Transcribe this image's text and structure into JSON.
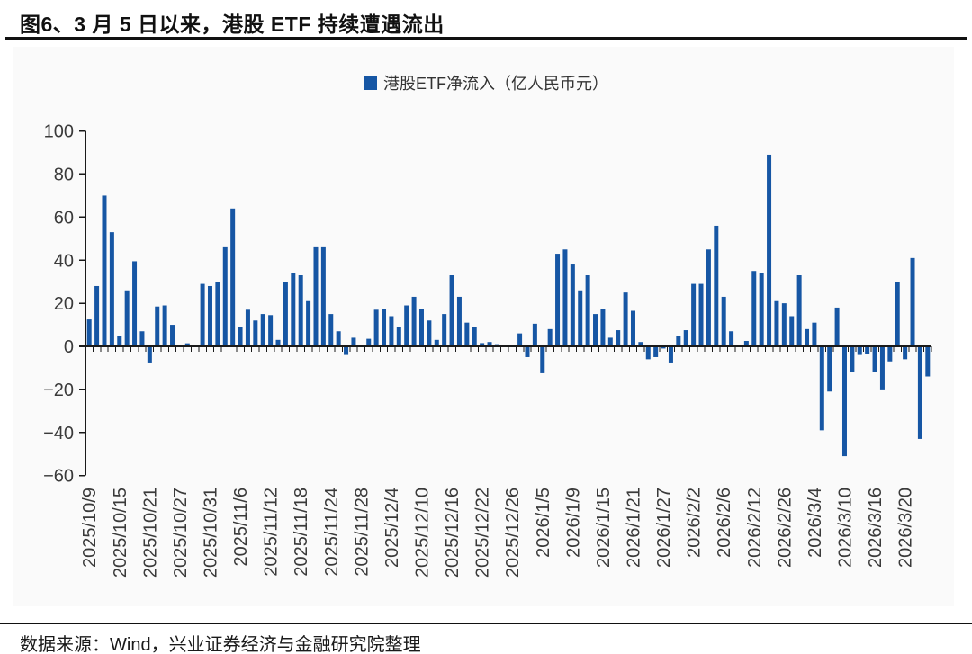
{
  "figure": {
    "title": "图6、3 月 5 日以来，港股 ETF 持续遭遇流出",
    "source": "数据来源：Wind，兴业证券经济与金融研究院整理"
  },
  "chart_data": {
    "type": "bar",
    "title": "",
    "legend": "港股ETF净流入（亿人民币元）",
    "legend_position": "top-center",
    "bar_color": "#1656A4",
    "axis_color": "#1a1a1a",
    "tick_label_color": "#3a3a3a",
    "grid": false,
    "ylim": [
      -60,
      100
    ],
    "ytick_labels": [
      "100",
      "80",
      "60",
      "40",
      "20",
      "0",
      "−20",
      "−40",
      "−60"
    ],
    "ytick_values": [
      100,
      80,
      60,
      40,
      20,
      0,
      -20,
      -40,
      -60
    ],
    "label_every_n_bars": 4,
    "x_tick_labels": [
      "2025/10/9",
      "2025/10/15",
      "2025/10/21",
      "2025/10/27",
      "2025/10/31",
      "2025/11/6",
      "2025/11/12",
      "2025/11/18",
      "2025/11/24",
      "2025/11/28",
      "2025/12/4",
      "2025/12/10",
      "2025/12/16",
      "2025/12/22",
      "2025/12/26",
      "2026/1/5",
      "2026/1/9",
      "2026/1/15",
      "2026/1/21",
      "2026/1/27",
      "2026/2/2",
      "2026/2/6",
      "2026/2/12",
      "2026/2/26",
      "2026/3/4",
      "2026/3/10",
      "2026/3/16",
      "2026/3/20"
    ],
    "values": [
      12.5,
      28,
      70,
      53,
      5,
      26,
      39.5,
      7,
      -7.5,
      18.5,
      19,
      10,
      0.3,
      1.4,
      0.3,
      29,
      28,
      30,
      46,
      64,
      9,
      17,
      12,
      15,
      14.5,
      3,
      30,
      34,
      33,
      21,
      46,
      46,
      15,
      7,
      -4,
      4,
      0.7,
      3.5,
      17,
      17.5,
      14,
      9,
      19,
      23,
      17.5,
      12,
      3,
      15,
      33,
      23,
      11,
      9,
      1.5,
      2,
      1,
      0.3,
      0.3,
      6,
      -5,
      10.5,
      -12.5,
      8,
      43,
      45,
      38,
      26,
      33,
      15,
      17.5,
      4,
      7.5,
      25,
      16.5,
      2,
      -6,
      -5,
      -1,
      -7.5,
      5,
      7.5,
      29,
      29,
      45,
      56,
      23,
      7,
      0.3,
      2.5,
      35,
      34,
      89,
      21,
      20,
      14,
      33,
      8,
      11,
      -39,
      -21,
      18,
      -51,
      -12,
      -4,
      -3.5,
      -12,
      -20,
      -7,
      30,
      -6,
      41,
      -43,
      -14
    ]
  }
}
